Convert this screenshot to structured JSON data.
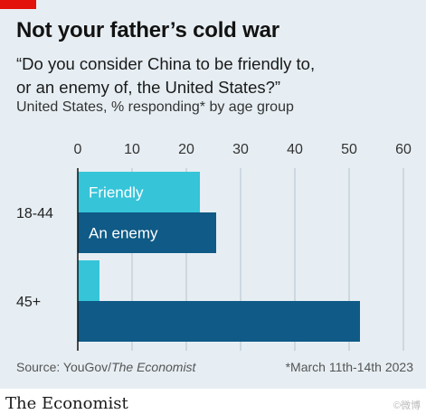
{
  "header": {
    "title": "Not your father’s cold war",
    "subtitle_line1": "“Do you consider China to be friendly to,",
    "subtitle_line2": "or an enemy of, the United States?”",
    "note": "United States, % responding* by age group"
  },
  "footer": {
    "source_prefix": "Source: YouGov/",
    "source_italic": "The Economist",
    "footnote": "*March 11th-14th 2023"
  },
  "brand": "The Economist",
  "watermark": "©微博",
  "colors": {
    "friendly": "#36c4d9",
    "enemy": "#0f5a86",
    "axis": "#121212",
    "grid": "#b6c3cc",
    "panel": "#e6eef3",
    "accent": "#e3120b"
  },
  "chart_data": {
    "type": "bar",
    "orientation": "horizontal",
    "categories": [
      "18-44",
      "45+"
    ],
    "series": [
      {
        "name": "Friendly",
        "values": [
          22.5,
          4
        ]
      },
      {
        "name": "An enemy",
        "values": [
          25.5,
          52
        ]
      }
    ],
    "xlim": [
      0,
      60
    ],
    "xticks": [
      0,
      10,
      20,
      30,
      40,
      50,
      60
    ],
    "grid": true,
    "legend": "inline-labels"
  }
}
